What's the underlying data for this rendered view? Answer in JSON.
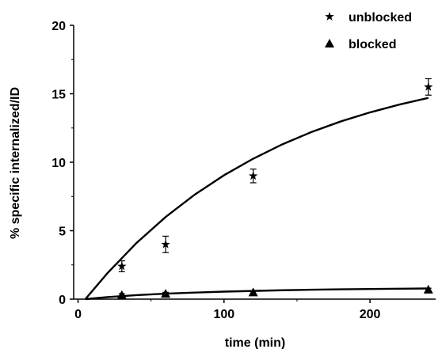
{
  "chart_data": {
    "type": "scatter",
    "xlabel": "time (min)",
    "ylabel": "% specific internalized/ID",
    "xlim": [
      -3,
      245
    ],
    "ylim": [
      0,
      20
    ],
    "xticks": [
      0,
      100,
      200
    ],
    "yticks": [
      0,
      5,
      10,
      15,
      20
    ],
    "legend_position": "top-right",
    "grid": false,
    "series": [
      {
        "name": "unblocked",
        "marker": "star",
        "x": [
          30,
          60,
          120,
          240
        ],
        "y": [
          2.4,
          4.0,
          9.0,
          15.5
        ],
        "err": [
          0.4,
          0.6,
          0.5,
          0.6
        ]
      },
      {
        "name": "blocked",
        "marker": "triangle",
        "x": [
          30,
          60,
          120,
          240
        ],
        "y": [
          0.3,
          0.4,
          0.5,
          0.7
        ],
        "err": [
          0.1,
          0.1,
          0.1,
          0.1
        ]
      }
    ],
    "fit_curves": [
      {
        "series": "unblocked",
        "x": [
          5,
          20,
          40,
          60,
          80,
          100,
          120,
          140,
          160,
          180,
          200,
          220,
          240
        ],
        "y": [
          0.0,
          1.88,
          4.1,
          6.0,
          7.64,
          9.05,
          10.26,
          11.31,
          12.21,
          12.98,
          13.64,
          14.21,
          14.7
        ]
      },
      {
        "series": "blocked",
        "x": [
          5,
          20,
          40,
          60,
          80,
          100,
          120,
          140,
          160,
          180,
          200,
          220,
          240
        ],
        "y": [
          0.0,
          0.15,
          0.29,
          0.4,
          0.48,
          0.55,
          0.6,
          0.65,
          0.69,
          0.72,
          0.74,
          0.76,
          0.78
        ]
      }
    ]
  }
}
